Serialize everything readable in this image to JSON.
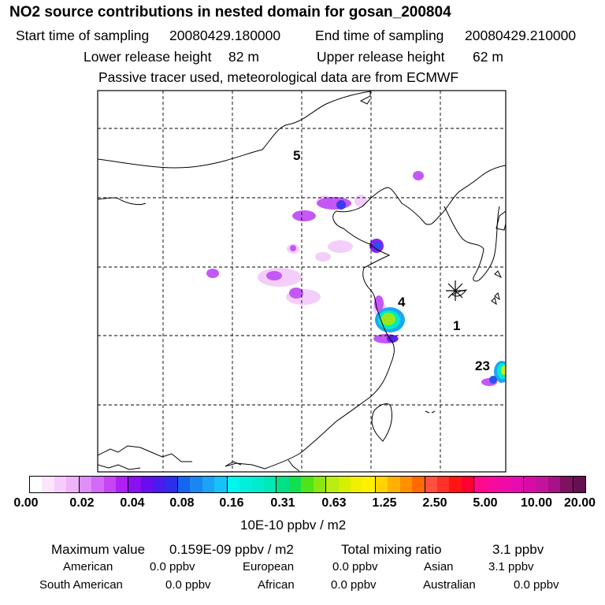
{
  "header": {
    "title": "NO2 source contributions in nested domain for gosan_200804",
    "start_label": "Start time of sampling",
    "start_value": "20080429.180000",
    "end_label": "End time of sampling",
    "end_value": "20080429.210000",
    "lower_label": "Lower release height",
    "lower_value": "82 m",
    "upper_label": "Upper release height",
    "upper_value": "62 m",
    "note": "Passive tracer used, meteorological data are from ECMWF"
  },
  "map": {
    "source_labels": [
      {
        "text": "5"
      },
      {
        "text": "4"
      },
      {
        "text": "1"
      },
      {
        "text": "23"
      }
    ],
    "receptor_marker": "asterisk-marker"
  },
  "colorbar": {
    "ticks": [
      "0.00",
      "0.02",
      "0.04",
      "0.08",
      "0.16",
      "0.31",
      "0.63",
      "1.25",
      "2.50",
      "5.00",
      "10.00",
      "20.00"
    ],
    "colors": [
      "#ffffff",
      "#fbe6fc",
      "#f6ccfb",
      "#f0b2f9",
      "#df8ff8",
      "#d36bf6",
      "#c546f5",
      "#b020f3",
      "#8a0ff2",
      "#6a0cf0",
      "#4a1bef",
      "#2c2ded",
      "#1565f0",
      "#1a86f4",
      "#1ba3f6",
      "#16c2f7",
      "#00f5ee",
      "#00f0dd",
      "#00eccc",
      "#00e8b5",
      "#00e084",
      "#10e050",
      "#4fe31a",
      "#8ae810",
      "#b9ee10",
      "#d7f000",
      "#f0f000",
      "#fff000",
      "#ffd200",
      "#ffb000",
      "#ff9000",
      "#ff6a00",
      "#ff5040",
      "#ff3028",
      "#ff1414",
      "#ff0030",
      "#ff0a8c",
      "#f80a9c",
      "#f00aa8",
      "#e80ab2",
      "#d80aa8",
      "#c5129e",
      "#a81288",
      "#801060",
      "#651050"
    ],
    "unit": "10E-10 ppbv / m2"
  },
  "stats": {
    "max_label": "Maximum value",
    "max_value": "0.159E-09 ppbv / m2",
    "total_label": "Total mixing ratio",
    "total_value": "3.1 ppbv",
    "regions": [
      {
        "name": "American",
        "value": "0.0 ppbv"
      },
      {
        "name": "European",
        "value": "0.0 ppbv"
      },
      {
        "name": "Asian",
        "value": "3.1 ppbv"
      },
      {
        "name": "South American",
        "value": "0.0 ppbv"
      },
      {
        "name": "African",
        "value": "0.0 ppbv"
      },
      {
        "name": "Australian",
        "value": "0.0 ppbv"
      }
    ]
  }
}
